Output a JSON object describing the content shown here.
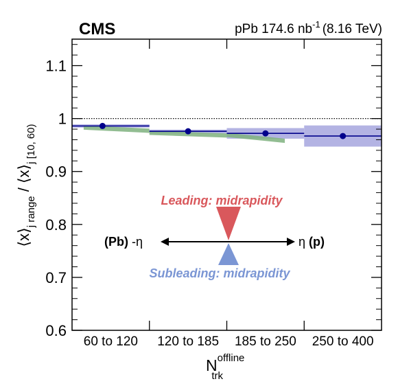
{
  "header": {
    "experiment": "CMS",
    "dataset_prefix": "pPb 174.6 nb",
    "dataset_exp": "-1",
    "dataset_suffix": "(8.16 TeV)"
  },
  "axes": {
    "y_main": "⟨x⟩",
    "y_sub_range": "j range",
    "y_mid": " / ⟨x⟩",
    "y_sub_ref": "j [10, 60)",
    "x_main": "N",
    "x_sup": "offline",
    "x_sub": "trk"
  },
  "diagram": {
    "leading_label": "Leading: midrapidity",
    "subleading_label": "Subleading: midrapidity",
    "left_label_bold": "(Pb)",
    "left_label_eta": "-η",
    "right_label_eta": "η",
    "right_label_bold": "(p)",
    "leading_color": "#d9585c",
    "subleading_color": "#7b96d4"
  },
  "colors": {
    "data": "#00008b",
    "syst_band": "#b3b3e3",
    "model_band": "#7fb27f"
  },
  "chart_data": {
    "type": "scatter",
    "categories": [
      "60 to 120",
      "120 to 185",
      "185 to 250",
      "250 to 400"
    ],
    "ylim": [
      0.6,
      1.15
    ],
    "yticks": [
      0.6,
      0.7,
      0.8,
      0.9,
      1,
      1.1
    ],
    "ytick_labels": [
      "0.6",
      "0.7",
      "0.8",
      "0.9",
      "1",
      "1.1"
    ],
    "reference_line": 1.0,
    "series": [
      {
        "values": [
          0.986,
          0.976,
          0.972,
          0.967
        ],
        "syst_low": [
          0.983,
          0.972,
          0.962,
          0.947
        ],
        "syst_high": [
          0.989,
          0.979,
          0.982,
          0.987
        ]
      }
    ],
    "model_band": {
      "x_start": [
        0.15,
        1.0,
        2.0
      ],
      "x_end": [
        1.0,
        2.0,
        2.75
      ],
      "y_start": [
        0.983,
        0.973,
        0.969
      ],
      "y_end": [
        0.977,
        0.968,
        0.958
      ],
      "half_width": 0.004
    }
  }
}
